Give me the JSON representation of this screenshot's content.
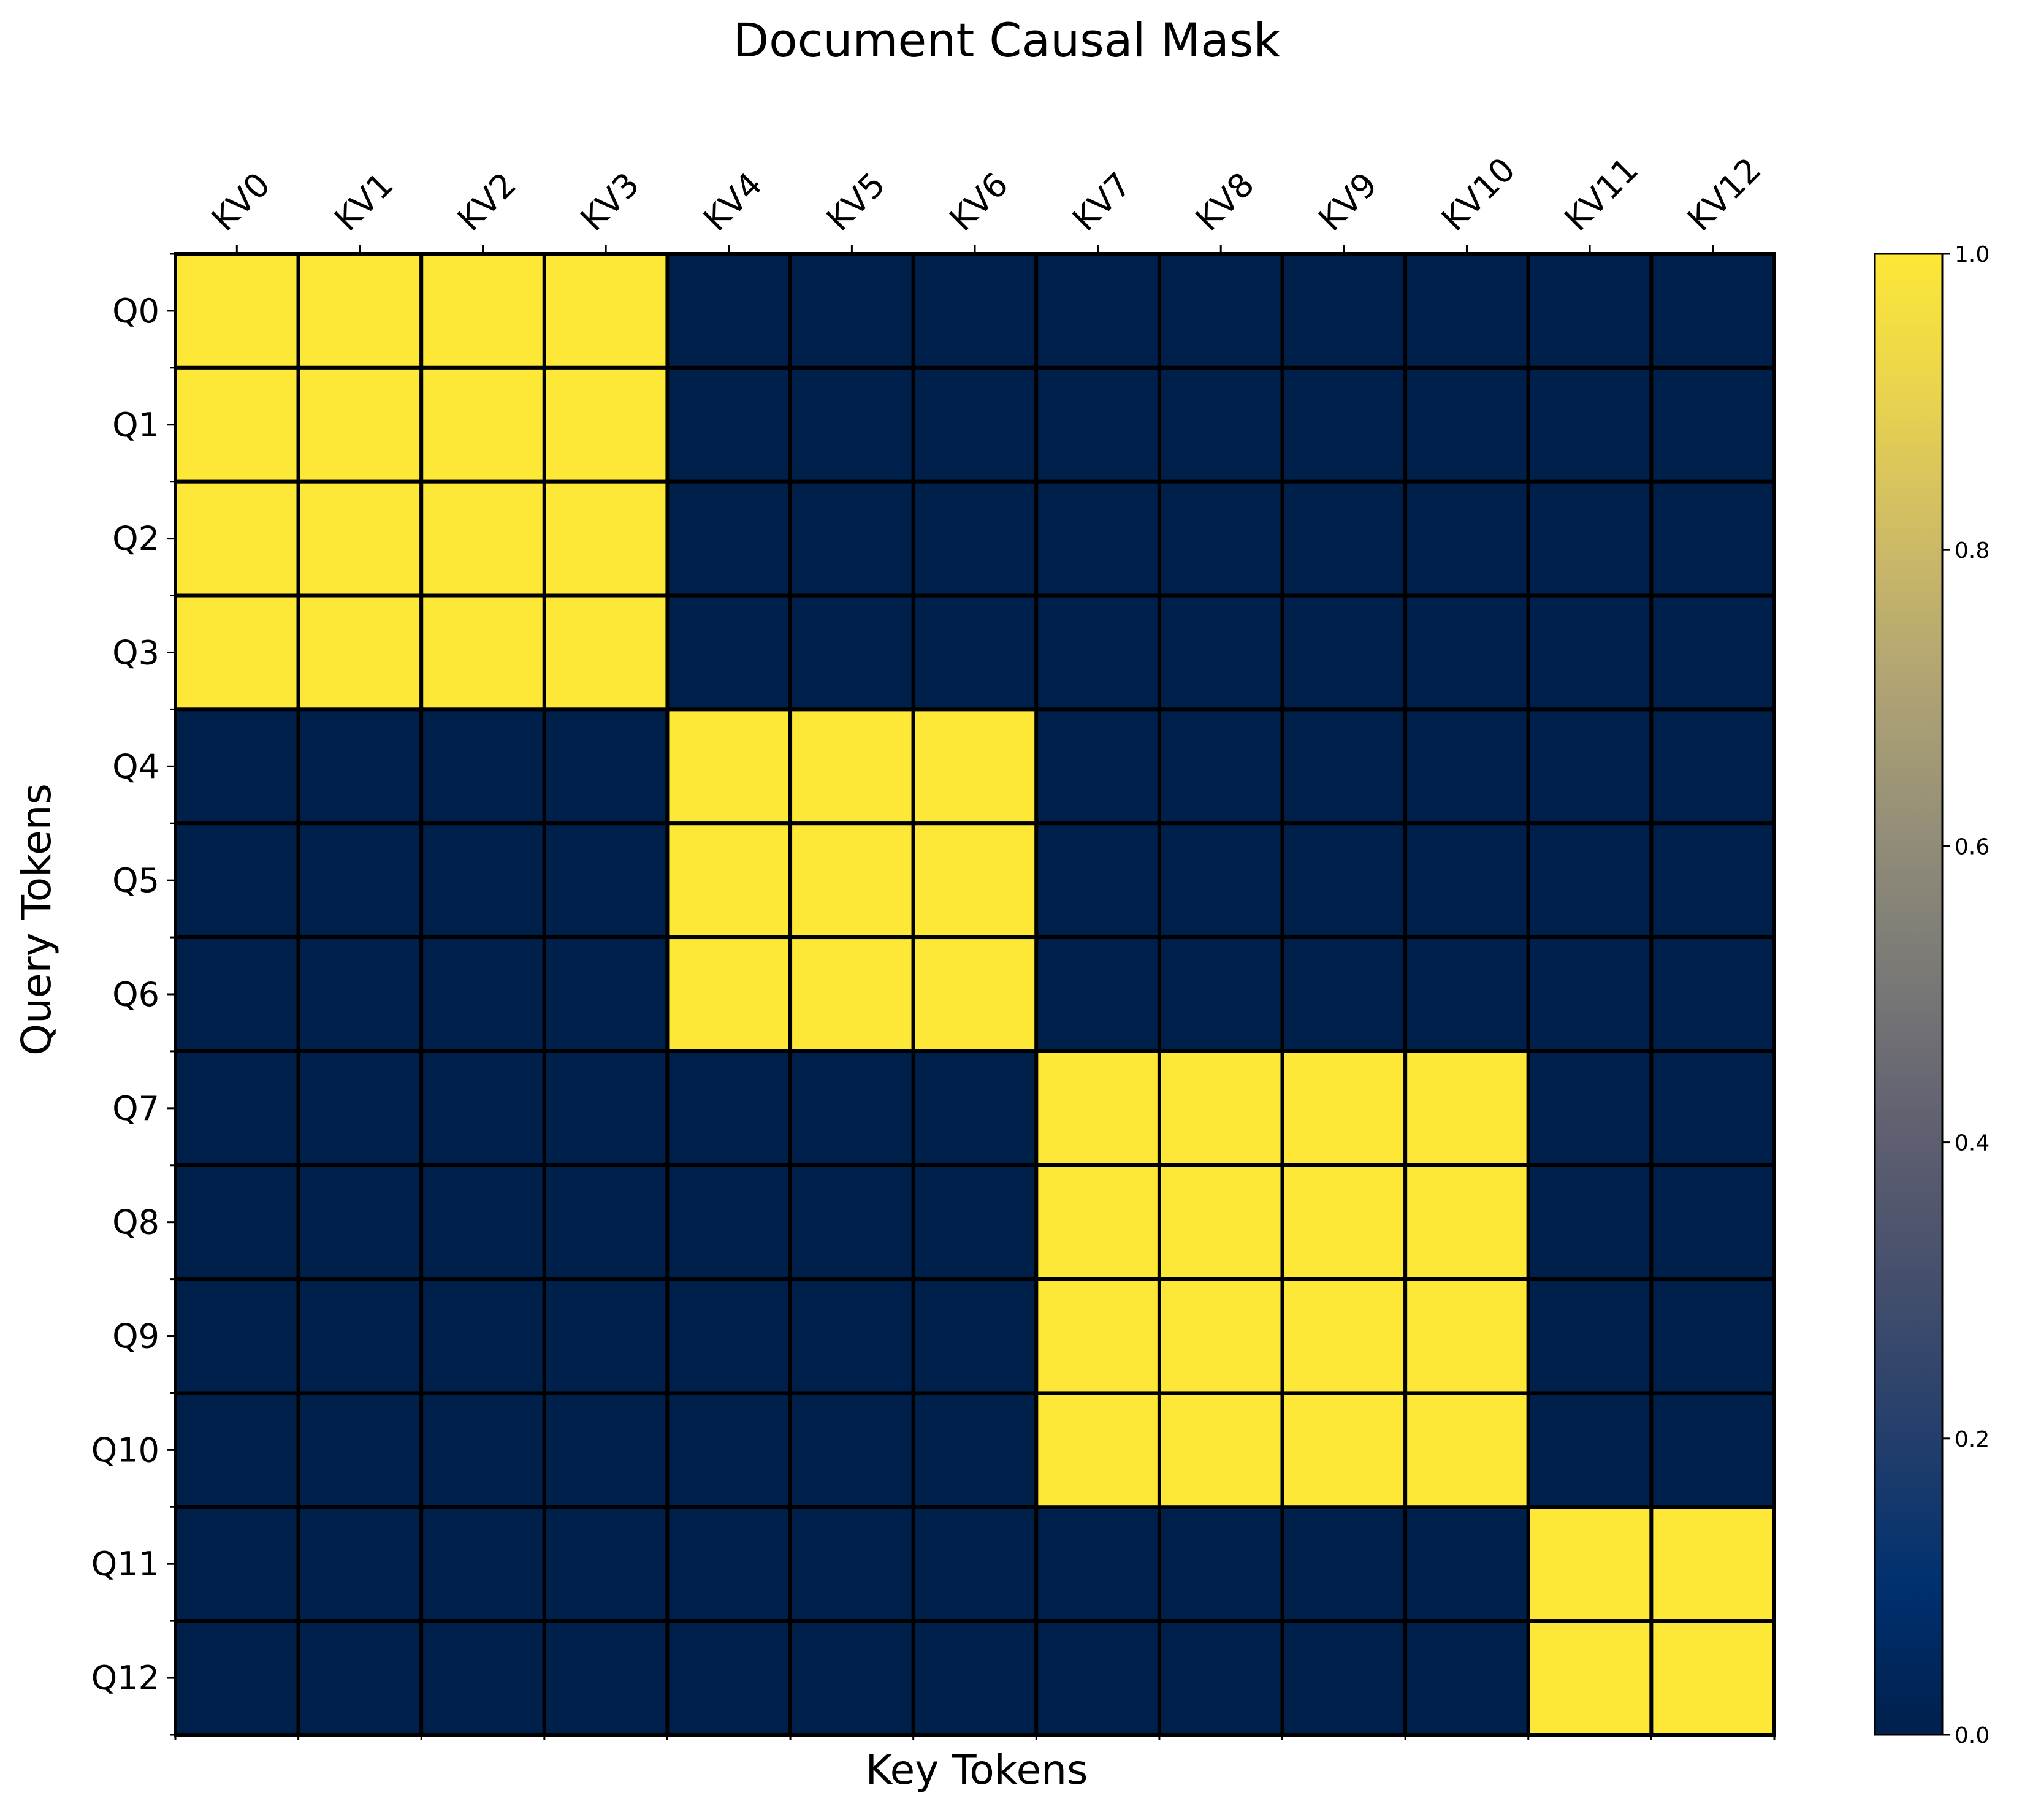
{
  "chart_data": {
    "type": "heatmap",
    "title": "Document Causal Mask",
    "xlabel": "Key Tokens",
    "ylabel": "Query Tokens",
    "x_categories": [
      "KV0",
      "KV1",
      "KV2",
      "KV3",
      "KV4",
      "KV5",
      "KV6",
      "KV7",
      "KV8",
      "KV9",
      "KV10",
      "KV11",
      "KV12"
    ],
    "y_categories": [
      "Q0",
      "Q1",
      "Q2",
      "Q3",
      "Q4",
      "Q5",
      "Q6",
      "Q7",
      "Q8",
      "Q9",
      "Q10",
      "Q11",
      "Q12"
    ],
    "values": [
      [
        1,
        1,
        1,
        1,
        0,
        0,
        0,
        0,
        0,
        0,
        0,
        0,
        0
      ],
      [
        1,
        1,
        1,
        1,
        0,
        0,
        0,
        0,
        0,
        0,
        0,
        0,
        0
      ],
      [
        1,
        1,
        1,
        1,
        0,
        0,
        0,
        0,
        0,
        0,
        0,
        0,
        0
      ],
      [
        1,
        1,
        1,
        1,
        0,
        0,
        0,
        0,
        0,
        0,
        0,
        0,
        0
      ],
      [
        0,
        0,
        0,
        0,
        1,
        1,
        1,
        0,
        0,
        0,
        0,
        0,
        0
      ],
      [
        0,
        0,
        0,
        0,
        1,
        1,
        1,
        0,
        0,
        0,
        0,
        0,
        0
      ],
      [
        0,
        0,
        0,
        0,
        1,
        1,
        1,
        0,
        0,
        0,
        0,
        0,
        0
      ],
      [
        0,
        0,
        0,
        0,
        0,
        0,
        0,
        1,
        1,
        1,
        1,
        0,
        0
      ],
      [
        0,
        0,
        0,
        0,
        0,
        0,
        0,
        1,
        1,
        1,
        1,
        0,
        0
      ],
      [
        0,
        0,
        0,
        0,
        0,
        0,
        0,
        1,
        1,
        1,
        1,
        0,
        0
      ],
      [
        0,
        0,
        0,
        0,
        0,
        0,
        0,
        1,
        1,
        1,
        1,
        0,
        0
      ],
      [
        0,
        0,
        0,
        0,
        0,
        0,
        0,
        0,
        0,
        0,
        0,
        1,
        1
      ],
      [
        0,
        0,
        0,
        0,
        0,
        0,
        0,
        0,
        0,
        0,
        0,
        1,
        1
      ]
    ],
    "colormap": "cividis",
    "colorbar": {
      "range": [
        0.0,
        1.0
      ],
      "ticks": [
        "0.0",
        "0.2",
        "0.4",
        "0.6",
        "0.8",
        "1.0"
      ]
    },
    "colors": {
      "low": "#00204c",
      "high": "#fde737",
      "cell_border": "#000000"
    },
    "x_tick_position": "top",
    "x_tick_rotation": "45deg"
  }
}
